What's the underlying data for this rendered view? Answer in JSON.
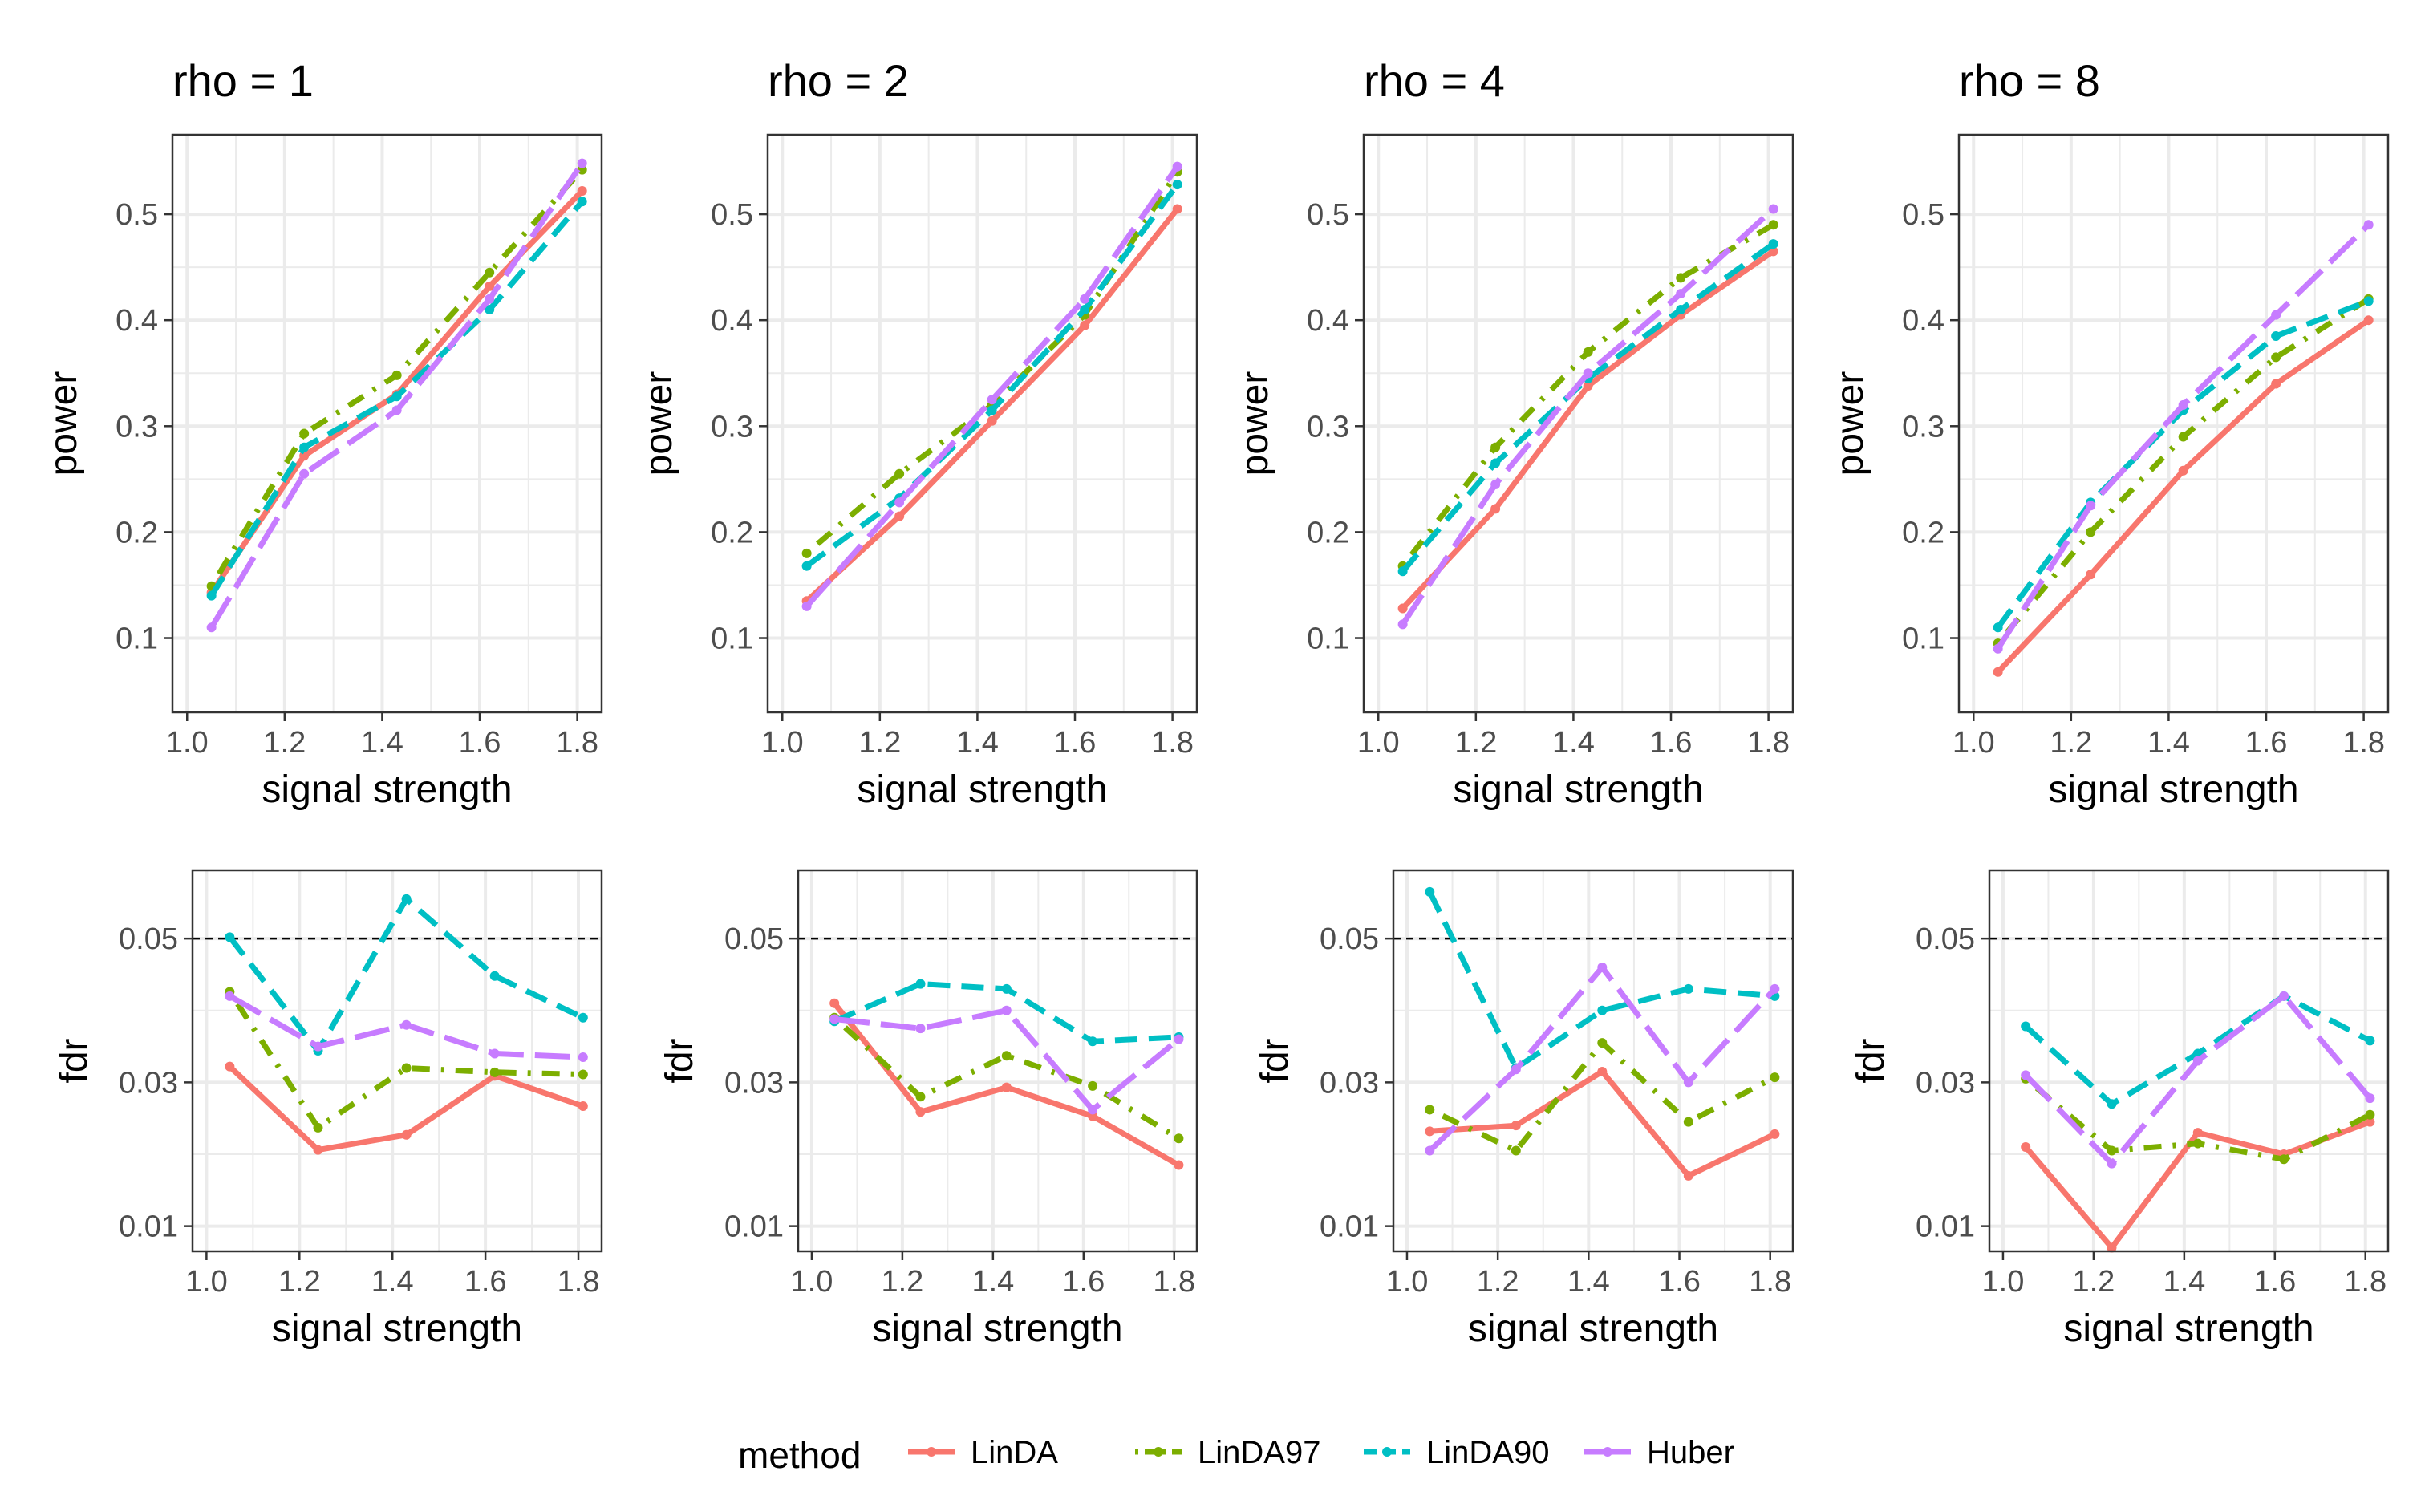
{
  "colors": {
    "LinDA": "#F8766D",
    "LinDA97": "#7CAE00",
    "LinDA90": "#00BFC4",
    "Huber": "#C77CFF",
    "axis": "#333333",
    "tick_text": "#4D4D4D",
    "grid": "#EBEBEB",
    "border": "#333333",
    "reference_line": "#000000"
  },
  "legend": {
    "title": "method",
    "entries": [
      {
        "name": "LinDA",
        "color": "#F8766D",
        "dash": "solid"
      },
      {
        "name": "LinDA97",
        "color": "#7CAE00",
        "dash": "dotdash"
      },
      {
        "name": "LinDA90",
        "color": "#00BFC4",
        "dash": "dashed"
      },
      {
        "name": "Huber",
        "color": "#C77CFF",
        "dash": "longdash"
      }
    ]
  },
  "chart_data": [
    {
      "type": "line",
      "title": "rho = 1",
      "xlabel": "signal strength",
      "ylabel": "power",
      "xlim": [
        0.97,
        1.85
      ],
      "ylim": [
        0.03,
        0.575
      ],
      "x_ticks": [
        "1.0",
        "1.2",
        "1.4",
        "1.6",
        "1.8"
      ],
      "y_ticks": [
        "0.1",
        "0.2",
        "0.3",
        "0.4",
        "0.5"
      ],
      "x": [
        1.05,
        1.24,
        1.43,
        1.62,
        1.81
      ],
      "series": [
        {
          "name": "LinDA",
          "values": [
            0.143,
            0.272,
            0.33,
            0.432,
            0.522
          ]
        },
        {
          "name": "LinDA97",
          "values": [
            0.149,
            0.293,
            0.348,
            0.445,
            0.542
          ]
        },
        {
          "name": "LinDA90",
          "values": [
            0.14,
            0.28,
            0.328,
            0.41,
            0.512
          ]
        },
        {
          "name": "Huber",
          "values": [
            0.11,
            0.255,
            0.315,
            0.42,
            0.548
          ]
        }
      ]
    },
    {
      "type": "line",
      "title": "rho = 2",
      "xlabel": "signal strength",
      "ylabel": "power",
      "xlim": [
        0.97,
        1.85
      ],
      "ylim": [
        0.03,
        0.575
      ],
      "x_ticks": [
        "1.0",
        "1.2",
        "1.4",
        "1.6",
        "1.8"
      ],
      "y_ticks": [
        "0.1",
        "0.2",
        "0.3",
        "0.4",
        "0.5"
      ],
      "x": [
        1.05,
        1.24,
        1.43,
        1.62,
        1.81
      ],
      "series": [
        {
          "name": "LinDA",
          "values": [
            0.135,
            0.215,
            0.305,
            0.395,
            0.505
          ]
        },
        {
          "name": "LinDA97",
          "values": [
            0.18,
            0.255,
            0.32,
            0.405,
            0.54
          ]
        },
        {
          "name": "LinDA90",
          "values": [
            0.168,
            0.232,
            0.315,
            0.41,
            0.528
          ]
        },
        {
          "name": "Huber",
          "values": [
            0.13,
            0.228,
            0.325,
            0.42,
            0.545
          ]
        }
      ]
    },
    {
      "type": "line",
      "title": "rho = 4",
      "xlabel": "signal strength",
      "ylabel": "power",
      "xlim": [
        0.97,
        1.85
      ],
      "ylim": [
        0.03,
        0.575
      ],
      "x_ticks": [
        "1.0",
        "1.2",
        "1.4",
        "1.6",
        "1.8"
      ],
      "y_ticks": [
        "0.1",
        "0.2",
        "0.3",
        "0.4",
        "0.5"
      ],
      "x": [
        1.05,
        1.24,
        1.43,
        1.62,
        1.81
      ],
      "series": [
        {
          "name": "LinDA",
          "values": [
            0.128,
            0.222,
            0.338,
            0.405,
            0.465
          ]
        },
        {
          "name": "LinDA97",
          "values": [
            0.168,
            0.28,
            0.37,
            0.44,
            0.49
          ]
        },
        {
          "name": "LinDA90",
          "values": [
            0.163,
            0.265,
            0.345,
            0.41,
            0.472
          ]
        },
        {
          "name": "Huber",
          "values": [
            0.113,
            0.245,
            0.35,
            0.425,
            0.505
          ]
        }
      ]
    },
    {
      "type": "line",
      "title": "rho = 8",
      "xlabel": "signal strength",
      "ylabel": "power",
      "xlim": [
        0.97,
        1.85
      ],
      "ylim": [
        0.03,
        0.575
      ],
      "x_ticks": [
        "1.0",
        "1.2",
        "1.4",
        "1.6",
        "1.8"
      ],
      "y_ticks": [
        "0.1",
        "0.2",
        "0.3",
        "0.4",
        "0.5"
      ],
      "x": [
        1.05,
        1.24,
        1.43,
        1.62,
        1.81
      ],
      "series": [
        {
          "name": "LinDA",
          "values": [
            0.068,
            0.16,
            0.258,
            0.34,
            0.4
          ]
        },
        {
          "name": "LinDA97",
          "values": [
            0.095,
            0.2,
            0.29,
            0.365,
            0.42
          ]
        },
        {
          "name": "LinDA90",
          "values": [
            0.11,
            0.228,
            0.315,
            0.385,
            0.418
          ]
        },
        {
          "name": "Huber",
          "values": [
            0.09,
            0.225,
            0.32,
            0.405,
            0.49
          ]
        }
      ]
    },
    {
      "type": "line",
      "title": "",
      "xlabel": "signal strength",
      "ylabel": "fdr",
      "xlim": [
        0.97,
        1.85
      ],
      "ylim": [
        0.0065,
        0.0595
      ],
      "hline": 0.05,
      "x_ticks": [
        "1.0",
        "1.2",
        "1.4",
        "1.6",
        "1.8"
      ],
      "y_ticks": [
        "0.01",
        "0.03",
        "0.05"
      ],
      "x": [
        1.05,
        1.24,
        1.43,
        1.62,
        1.81
      ],
      "series": [
        {
          "name": "LinDA",
          "values": [
            0.0322,
            0.0206,
            0.0227,
            0.0309,
            0.0267
          ]
        },
        {
          "name": "LinDA97",
          "values": [
            0.0426,
            0.0237,
            0.032,
            0.0314,
            0.0311
          ]
        },
        {
          "name": "LinDA90",
          "values": [
            0.0502,
            0.0344,
            0.0555,
            0.0448,
            0.039
          ]
        },
        {
          "name": "Huber",
          "values": [
            0.042,
            0.035,
            0.038,
            0.034,
            0.0335
          ]
        }
      ]
    },
    {
      "type": "line",
      "title": "",
      "xlabel": "signal strength",
      "ylabel": "fdr",
      "xlim": [
        0.97,
        1.85
      ],
      "ylim": [
        0.0065,
        0.0595
      ],
      "hline": 0.05,
      "x_ticks": [
        "1.0",
        "1.2",
        "1.4",
        "1.6",
        "1.8"
      ],
      "y_ticks": [
        "0.01",
        "0.03",
        "0.05"
      ],
      "x": [
        1.05,
        1.24,
        1.43,
        1.62,
        1.81
      ],
      "series": [
        {
          "name": "LinDA",
          "values": [
            0.041,
            0.0259,
            0.0293,
            0.0253,
            0.0185
          ]
        },
        {
          "name": "LinDA97",
          "values": [
            0.039,
            0.028,
            0.0337,
            0.0295,
            0.0222
          ]
        },
        {
          "name": "LinDA90",
          "values": [
            0.0385,
            0.0437,
            0.043,
            0.0357,
            0.0363
          ]
        },
        {
          "name": "Huber",
          "values": [
            0.0388,
            0.0375,
            0.04,
            0.0262,
            0.036
          ]
        }
      ]
    },
    {
      "type": "line",
      "title": "",
      "xlabel": "signal strength",
      "ylabel": "fdr",
      "xlim": [
        0.97,
        1.85
      ],
      "ylim": [
        0.0065,
        0.0595
      ],
      "hline": 0.05,
      "x_ticks": [
        "1.0",
        "1.2",
        "1.4",
        "1.6",
        "1.8"
      ],
      "y_ticks": [
        "0.01",
        "0.03",
        "0.05"
      ],
      "x": [
        1.05,
        1.24,
        1.43,
        1.62,
        1.81
      ],
      "series": [
        {
          "name": "LinDA",
          "values": [
            0.0232,
            0.024,
            0.0315,
            0.017,
            0.0228
          ]
        },
        {
          "name": "LinDA97",
          "values": [
            0.0262,
            0.0205,
            0.0355,
            0.0245,
            0.0307
          ]
        },
        {
          "name": "LinDA90",
          "values": [
            0.0565,
            0.032,
            0.04,
            0.043,
            0.042
          ]
        },
        {
          "name": "Huber",
          "values": [
            0.0205,
            0.0318,
            0.046,
            0.03,
            0.043
          ]
        }
      ]
    },
    {
      "type": "line",
      "title": "",
      "xlabel": "signal strength",
      "ylabel": "fdr",
      "xlim": [
        0.97,
        1.85
      ],
      "ylim": [
        0.0065,
        0.0595
      ],
      "hline": 0.05,
      "x_ticks": [
        "1.0",
        "1.2",
        "1.4",
        "1.6",
        "1.8"
      ],
      "y_ticks": [
        "0.01",
        "0.03",
        "0.05"
      ],
      "x": [
        1.05,
        1.24,
        1.43,
        1.62,
        1.81
      ],
      "series": [
        {
          "name": "LinDA",
          "values": [
            0.021,
            0.007,
            0.023,
            0.02,
            0.0245
          ]
        },
        {
          "name": "LinDA97",
          "values": [
            0.0305,
            0.0205,
            0.0215,
            0.0193,
            0.0255
          ]
        },
        {
          "name": "LinDA90",
          "values": [
            0.0378,
            0.027,
            0.034,
            0.042,
            0.0358
          ]
        },
        {
          "name": "Huber",
          "values": [
            0.031,
            0.0187,
            0.033,
            0.042,
            0.0278
          ]
        }
      ]
    }
  ]
}
